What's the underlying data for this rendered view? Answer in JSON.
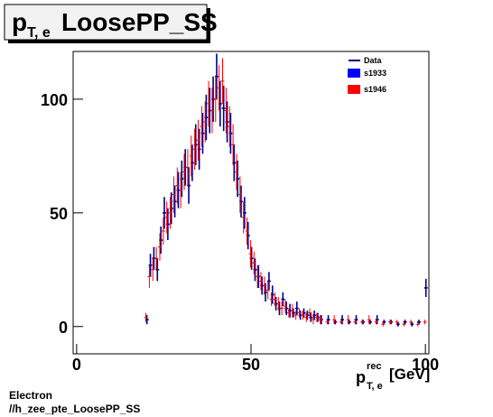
{
  "chart_data": {
    "type": "errorbar",
    "title": {
      "main": "p",
      "sub": "T, e",
      "rest": "LoosePP_SS"
    },
    "x_label": {
      "main": "p",
      "sup": "rec",
      "sub": "T, e",
      "unit": "[GeV]"
    },
    "footer": [
      "Electron",
      "//h_zee_pte_LoosePP_SS"
    ],
    "xlim": [
      -1,
      101
    ],
    "ylim": [
      -12,
      121
    ],
    "xticks": [
      0,
      50,
      100
    ],
    "yticks": [
      0,
      50,
      100
    ],
    "legend_line": {
      "name": "Data",
      "color": "#000080"
    },
    "x": [
      20,
      21,
      22,
      23,
      24,
      25,
      26,
      27,
      28,
      29,
      30,
      31,
      32,
      33,
      34,
      35,
      36,
      37,
      38,
      39,
      40,
      41,
      42,
      43,
      44,
      45,
      46,
      47,
      48,
      49,
      50,
      51,
      52,
      53,
      54,
      55,
      56,
      57,
      58,
      59,
      60,
      61,
      62,
      63,
      64,
      65,
      66,
      67,
      68,
      69,
      70,
      72,
      74,
      76,
      78,
      80,
      82,
      84,
      86,
      88,
      90,
      92,
      94,
      96,
      98,
      100
    ],
    "series": [
      {
        "name": "s1933",
        "color": "#0000ff",
        "line_color": "#00008b",
        "values": [
          3,
          27,
          30,
          25,
          38,
          50,
          45,
          52,
          55,
          60,
          65,
          70,
          62,
          72,
          80,
          78,
          85,
          92,
          95,
          100,
          110,
          98,
          96,
          90,
          85,
          72,
          65,
          55,
          50,
          40,
          30,
          25,
          22,
          18,
          15,
          20,
          14,
          10,
          8,
          12,
          8,
          7,
          6,
          8,
          5,
          6,
          5,
          4,
          5,
          4,
          3,
          3,
          2,
          3,
          2,
          3,
          2,
          2,
          3,
          2,
          2,
          1,
          2,
          1,
          2,
          17
        ],
        "errors": [
          2,
          5,
          5,
          5,
          6,
          7,
          7,
          7,
          7,
          8,
          8,
          8,
          8,
          8,
          9,
          9,
          9,
          10,
          10,
          10,
          10,
          10,
          10,
          9,
          9,
          8,
          8,
          7,
          7,
          6,
          5,
          5,
          5,
          4,
          4,
          4,
          4,
          3,
          3,
          3,
          3,
          3,
          2,
          3,
          2,
          2,
          2,
          2,
          2,
          2,
          2,
          2,
          1,
          2,
          1,
          2,
          1,
          1,
          2,
          1,
          1,
          1,
          1,
          1,
          1,
          4
        ]
      },
      {
        "name": "s1946",
        "color": "#ff0000",
        "line_color": "#ff0000",
        "values": [
          4,
          22,
          25,
          30,
          35,
          42,
          48,
          50,
          58,
          62,
          60,
          68,
          70,
          75,
          78,
          82,
          88,
          90,
          98,
          95,
          100,
          105,
          108,
          95,
          88,
          80,
          68,
          58,
          48,
          42,
          32,
          28,
          22,
          20,
          18,
          16,
          12,
          12,
          10,
          8,
          9,
          6,
          7,
          5,
          6,
          5,
          4,
          6,
          3,
          4,
          3,
          2,
          3,
          2,
          3,
          2,
          2,
          3,
          2,
          1,
          2,
          2,
          1,
          2,
          1,
          2
        ],
        "errors": [
          2,
          5,
          5,
          5,
          6,
          6,
          7,
          7,
          8,
          8,
          8,
          8,
          8,
          9,
          9,
          9,
          9,
          9,
          10,
          10,
          10,
          10,
          10,
          10,
          9,
          9,
          8,
          8,
          7,
          6,
          6,
          5,
          5,
          4,
          4,
          4,
          3,
          3,
          3,
          3,
          3,
          2,
          3,
          2,
          2,
          2,
          2,
          2,
          2,
          2,
          2,
          1,
          2,
          1,
          2,
          1,
          1,
          2,
          1,
          1,
          1,
          1,
          1,
          1,
          1,
          1
        ]
      }
    ]
  }
}
